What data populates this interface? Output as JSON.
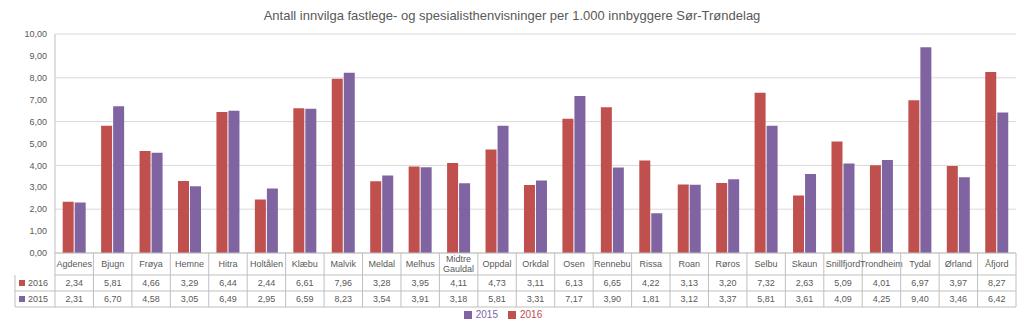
{
  "chart_data": {
    "type": "bar",
    "title": "Antall innvilga fastlege- og spesialisthenvisninger per 1.000 innbyggere Sør-Trøndelag",
    "categories": [
      "Agdenes",
      "Bjugn",
      "Frøya",
      "Hemne",
      "Hitra",
      "Holtålen",
      "Klæbu",
      "Malvik",
      "Meldal",
      "Melhus",
      "Midtre Gauldal",
      "Oppdal",
      "Orkdal",
      "Osen",
      "Rennebu",
      "Rissa",
      "Roan",
      "Røros",
      "Selbu",
      "Skaun",
      "Snillfjord",
      "Trondheim",
      "Tydal",
      "Ørland",
      "Åfjord"
    ],
    "series": [
      {
        "name": "2016",
        "color": "#c0504d",
        "values": [
          2.34,
          5.81,
          4.66,
          3.29,
          6.44,
          2.44,
          6.61,
          7.96,
          3.28,
          3.95,
          4.11,
          4.73,
          3.11,
          6.13,
          6.65,
          4.22,
          3.13,
          3.2,
          7.32,
          2.63,
          5.09,
          4.01,
          6.97,
          3.97,
          8.27
        ],
        "value_labels": [
          "2,34",
          "5,81",
          "4,66",
          "3,29",
          "6,44",
          "2,44",
          "6,61",
          "7,96",
          "3,28",
          "3,95",
          "4,11",
          "4,73",
          "3,11",
          "6,13",
          "6,65",
          "4,22",
          "3,13",
          "3,20",
          "7,32",
          "2,63",
          "5,09",
          "4,01",
          "6,97",
          "3,97",
          "8,27"
        ]
      },
      {
        "name": "2015",
        "color": "#8064a2",
        "values": [
          2.31,
          6.7,
          4.58,
          3.05,
          6.49,
          2.95,
          6.59,
          8.23,
          3.54,
          3.91,
          3.18,
          5.81,
          3.31,
          7.17,
          3.9,
          1.81,
          3.12,
          3.37,
          5.81,
          3.61,
          4.09,
          4.25,
          9.4,
          3.46,
          6.42
        ],
        "value_labels": [
          "2,31",
          "6,70",
          "4,58",
          "3,05",
          "6,49",
          "2,95",
          "6,59",
          "8,23",
          "3,54",
          "3,91",
          "3,18",
          "5,81",
          "3,31",
          "7,17",
          "3,90",
          "1,81",
          "3,12",
          "3,37",
          "5,81",
          "3,61",
          "4,09",
          "4,25",
          "9,40",
          "3,46",
          "6,42"
        ]
      }
    ],
    "ylim": [
      0,
      10
    ],
    "yticks": [
      {
        "value": 0,
        "label": "0,00"
      },
      {
        "value": 1,
        "label": "1,00"
      },
      {
        "value": 2,
        "label": "2,00"
      },
      {
        "value": 3,
        "label": "3,00"
      },
      {
        "value": 4,
        "label": "4,00"
      },
      {
        "value": 5,
        "label": "5,00"
      },
      {
        "value": 6,
        "label": "6,00"
      },
      {
        "value": 7,
        "label": "7,00"
      },
      {
        "value": 8,
        "label": "8,00"
      },
      {
        "value": 9,
        "label": "9,00"
      },
      {
        "value": 10,
        "label": "10,00"
      }
    ],
    "grid": true,
    "legend": "bottom"
  }
}
